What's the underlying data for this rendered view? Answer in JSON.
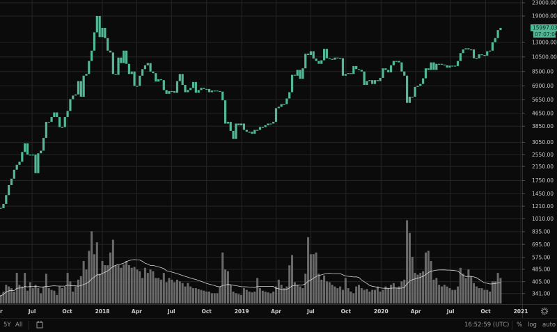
{
  "chart_data": {
    "type": "candlestick",
    "scale": "log",
    "grid": true,
    "price_axis_labels": [
      "23000.00",
      "19000.00",
      "13000.00",
      "10500.00",
      "8500.00",
      "6900.00",
      "5650.00",
      "4650.00",
      "3850.00",
      "3050.00",
      "2550.00",
      "2150.00",
      "1750.00",
      "1450.00",
      "1210.00",
      "1010.00",
      "835.00",
      "695.00",
      "575.00",
      "485.00",
      "405.00",
      "341.00"
    ],
    "time_axis_labels": [
      [
        "2017-04-01",
        "Apr"
      ],
      [
        "2017-07-01",
        "Jul"
      ],
      [
        "2017-10-01",
        "Oct"
      ],
      [
        "2018-01-01",
        "2018"
      ],
      [
        "2018-04-01",
        "Apr"
      ],
      [
        "2018-07-01",
        "Jul"
      ],
      [
        "2018-10-01",
        "Oct"
      ],
      [
        "2019-01-01",
        "2019"
      ],
      [
        "2019-04-01",
        "Apr"
      ],
      [
        "2019-07-01",
        "Jul"
      ],
      [
        "2019-10-01",
        "Oct"
      ],
      [
        "2020-01-01",
        "2020"
      ],
      [
        "2020-04-01",
        "Apr"
      ],
      [
        "2020-07-01",
        "Jul"
      ],
      [
        "2020-10-01",
        "Oct"
      ],
      [
        "2021-01-01",
        "2021"
      ]
    ],
    "last_price": "15997.03",
    "countdown": "07:07:00",
    "colors": {
      "candle": "#52b896",
      "volume": "#6a6a6a",
      "volume_ma": "#d8d8d8",
      "grid": "#262626",
      "background": "#0b0b0b"
    },
    "columns": [
      "week",
      "close",
      "volume_relative"
    ],
    "weeks": [
      [
        "2017-04-03",
        1180,
        8
      ],
      [
        "2017-04-10",
        1175,
        10
      ],
      [
        "2017-04-17",
        1250,
        14
      ],
      [
        "2017-04-24",
        1420,
        22
      ],
      [
        "2017-05-01",
        1640,
        20
      ],
      [
        "2017-05-08",
        1800,
        18
      ],
      [
        "2017-05-15",
        2050,
        14
      ],
      [
        "2017-05-22",
        2200,
        36
      ],
      [
        "2017-05-29",
        2300,
        22
      ],
      [
        "2017-06-05",
        2650,
        20
      ],
      [
        "2017-06-12",
        3000,
        36
      ],
      [
        "2017-06-19",
        2550,
        15
      ],
      [
        "2017-06-26",
        2550,
        25
      ],
      [
        "2017-07-03",
        2550,
        18
      ],
      [
        "2017-07-10",
        1950,
        22
      ],
      [
        "2017-07-17",
        2600,
        18
      ],
      [
        "2017-07-24",
        2700,
        12
      ],
      [
        "2017-07-31",
        3250,
        20
      ],
      [
        "2017-08-07",
        4100,
        35
      ],
      [
        "2017-08-14",
        4100,
        18
      ],
      [
        "2017-08-21",
        4400,
        16
      ],
      [
        "2017-08-28",
        4700,
        15
      ],
      [
        "2017-09-04",
        4400,
        10
      ],
      [
        "2017-09-11",
        3800,
        20
      ],
      [
        "2017-09-18",
        3800,
        18
      ],
      [
        "2017-09-25",
        4400,
        20
      ],
      [
        "2017-10-02",
        4800,
        36
      ],
      [
        "2017-10-09",
        5700,
        26
      ],
      [
        "2017-10-16",
        6000,
        14
      ],
      [
        "2017-10-23",
        6100,
        20
      ],
      [
        "2017-10-30",
        7400,
        28
      ],
      [
        "2017-11-06",
        5900,
        32
      ],
      [
        "2017-11-13",
        8000,
        50
      ],
      [
        "2017-11-20",
        8200,
        40
      ],
      [
        "2017-11-27",
        9900,
        62
      ],
      [
        "2017-12-04",
        11500,
        85
      ],
      [
        "2017-12-11",
        15000,
        58
      ],
      [
        "2017-12-18",
        19000,
        72
      ],
      [
        "2017-12-25",
        14000,
        35
      ],
      [
        "2018-01-01",
        16000,
        50
      ],
      [
        "2018-01-08",
        13800,
        45
      ],
      [
        "2018-01-15",
        11500,
        45
      ],
      [
        "2018-01-22",
        11200,
        60
      ],
      [
        "2018-01-29",
        8200,
        75
      ],
      [
        "2018-02-05",
        8100,
        45
      ],
      [
        "2018-02-12",
        10400,
        45
      ],
      [
        "2018-02-19",
        9600,
        42
      ],
      [
        "2018-02-26",
        11500,
        46
      ],
      [
        "2018-03-05",
        9500,
        50
      ],
      [
        "2018-03-12",
        8200,
        45
      ],
      [
        "2018-03-19",
        8500,
        42
      ],
      [
        "2018-03-26",
        6900,
        43
      ],
      [
        "2018-04-02",
        6900,
        40
      ],
      [
        "2018-04-09",
        8000,
        38
      ],
      [
        "2018-04-16",
        8800,
        30
      ],
      [
        "2018-04-23",
        9300,
        42
      ],
      [
        "2018-04-30",
        9600,
        36
      ],
      [
        "2018-05-07",
        8500,
        40
      ],
      [
        "2018-05-14",
        8300,
        38
      ],
      [
        "2018-05-21",
        7350,
        30
      ],
      [
        "2018-05-28",
        7600,
        30
      ],
      [
        "2018-06-04",
        7500,
        28
      ],
      [
        "2018-06-11",
        6500,
        36
      ],
      [
        "2018-06-18",
        6150,
        25
      ],
      [
        "2018-06-25",
        6400,
        30
      ],
      [
        "2018-07-02",
        6400,
        28
      ],
      [
        "2018-07-09",
        6250,
        25
      ],
      [
        "2018-07-16",
        7400,
        28
      ],
      [
        "2018-07-23",
        8200,
        26
      ],
      [
        "2018-07-30",
        7000,
        24
      ],
      [
        "2018-08-06",
        6300,
        20
      ],
      [
        "2018-08-13",
        6500,
        24
      ],
      [
        "2018-08-20",
        6700,
        20
      ],
      [
        "2018-08-27",
        7300,
        18
      ],
      [
        "2018-09-03",
        6250,
        18
      ],
      [
        "2018-09-10",
        6500,
        17
      ],
      [
        "2018-09-17",
        6700,
        16
      ],
      [
        "2018-09-24",
        6600,
        15
      ],
      [
        "2018-10-01",
        6600,
        14
      ],
      [
        "2018-10-08",
        6300,
        14
      ],
      [
        "2018-10-15",
        6450,
        12
      ],
      [
        "2018-10-22",
        6450,
        12
      ],
      [
        "2018-10-29",
        6400,
        12
      ],
      [
        "2018-11-05",
        6350,
        20
      ],
      [
        "2018-11-12",
        5600,
        60
      ],
      [
        "2018-11-19",
        4000,
        40
      ],
      [
        "2018-11-26",
        4100,
        38
      ],
      [
        "2018-12-03",
        3600,
        22
      ],
      [
        "2018-12-10",
        3200,
        14
      ],
      [
        "2018-12-17",
        4000,
        12
      ],
      [
        "2018-12-24",
        3900,
        11
      ],
      [
        "2018-12-31",
        4000,
        10
      ],
      [
        "2019-01-07",
        3650,
        18
      ],
      [
        "2019-01-14",
        3550,
        16
      ],
      [
        "2019-01-21",
        3550,
        14
      ],
      [
        "2019-01-28",
        3450,
        13
      ],
      [
        "2019-02-04",
        3650,
        14
      ],
      [
        "2019-02-11",
        3650,
        30
      ],
      [
        "2019-02-18",
        3800,
        18
      ],
      [
        "2019-02-25",
        3800,
        15
      ],
      [
        "2019-03-04",
        3900,
        14
      ],
      [
        "2019-03-11",
        4000,
        13
      ],
      [
        "2019-03-18",
        4000,
        12
      ],
      [
        "2019-03-25",
        4100,
        14
      ],
      [
        "2019-04-01",
        5000,
        20
      ],
      [
        "2019-04-08",
        5100,
        28
      ],
      [
        "2019-04-15",
        5300,
        22
      ],
      [
        "2019-04-22",
        5300,
        18
      ],
      [
        "2019-04-29",
        5750,
        20
      ],
      [
        "2019-05-06",
        6300,
        45
      ],
      [
        "2019-05-13",
        8100,
        57
      ],
      [
        "2019-05-20",
        8000,
        25
      ],
      [
        "2019-05-27",
        8700,
        22
      ],
      [
        "2019-06-03",
        7650,
        20
      ],
      [
        "2019-06-10",
        8900,
        18
      ],
      [
        "2019-06-17",
        11000,
        35
      ],
      [
        "2019-06-24",
        10800,
        78
      ],
      [
        "2019-07-01",
        11400,
        58
      ],
      [
        "2019-07-08",
        10250,
        58
      ],
      [
        "2019-07-15",
        9900,
        60
      ],
      [
        "2019-07-22",
        9500,
        35
      ],
      [
        "2019-07-29",
        10000,
        28
      ],
      [
        "2019-08-05",
        11800,
        33
      ],
      [
        "2019-08-12",
        10300,
        26
      ],
      [
        "2019-08-19",
        10200,
        25
      ],
      [
        "2019-08-26",
        10100,
        22
      ],
      [
        "2019-09-02",
        10400,
        20
      ],
      [
        "2019-09-09",
        10300,
        18
      ],
      [
        "2019-09-16",
        10300,
        20
      ],
      [
        "2019-09-23",
        8000,
        16
      ],
      [
        "2019-09-30",
        8200,
        30
      ],
      [
        "2019-10-07",
        8300,
        18
      ],
      [
        "2019-10-14",
        8200,
        14
      ],
      [
        "2019-10-21",
        9200,
        12
      ],
      [
        "2019-10-28",
        8800,
        20
      ],
      [
        "2019-11-04",
        8700,
        22
      ],
      [
        "2019-11-11",
        8500,
        18
      ],
      [
        "2019-11-18",
        7000,
        16
      ],
      [
        "2019-11-25",
        7400,
        17
      ],
      [
        "2019-12-02",
        7500,
        14
      ],
      [
        "2019-12-09",
        7100,
        16
      ],
      [
        "2019-12-16",
        7500,
        16
      ],
      [
        "2019-12-23",
        7400,
        20
      ],
      [
        "2019-12-30",
        7750,
        14
      ],
      [
        "2020-01-06",
        8900,
        16
      ],
      [
        "2020-01-13",
        8700,
        20
      ],
      [
        "2020-01-20",
        8400,
        18
      ],
      [
        "2020-01-27",
        9300,
        22
      ],
      [
        "2020-02-03",
        9900,
        24
      ],
      [
        "2020-02-10",
        9900,
        18
      ],
      [
        "2020-02-17",
        9700,
        20
      ],
      [
        "2020-02-24",
        8500,
        26
      ],
      [
        "2020-03-02",
        8000,
        28
      ],
      [
        "2020-03-09",
        5400,
        98
      ],
      [
        "2020-03-16",
        5900,
        83
      ],
      [
        "2020-03-23",
        5900,
        55
      ],
      [
        "2020-03-30",
        6800,
        36
      ],
      [
        "2020-04-06",
        6900,
        34
      ],
      [
        "2020-04-13",
        7100,
        36
      ],
      [
        "2020-04-20",
        7700,
        38
      ],
      [
        "2020-04-27",
        8900,
        60
      ],
      [
        "2020-05-04",
        8700,
        62
      ],
      [
        "2020-05-11",
        9700,
        50
      ],
      [
        "2020-05-18",
        8700,
        28
      ],
      [
        "2020-05-25",
        9500,
        30
      ],
      [
        "2020-06-01",
        9500,
        22
      ],
      [
        "2020-06-08",
        9400,
        20
      ],
      [
        "2020-06-15",
        9300,
        22
      ],
      [
        "2020-06-22",
        9000,
        20
      ],
      [
        "2020-06-29",
        9250,
        18
      ],
      [
        "2020-07-06",
        9250,
        16
      ],
      [
        "2020-07-13",
        9200,
        16
      ],
      [
        "2020-07-20",
        9900,
        20
      ],
      [
        "2020-07-27",
        11100,
        42
      ],
      [
        "2020-08-03",
        11700,
        35
      ],
      [
        "2020-08-10",
        11900,
        30
      ],
      [
        "2020-08-17",
        11700,
        40
      ],
      [
        "2020-08-24",
        11700,
        32
      ],
      [
        "2020-08-31",
        10300,
        24
      ],
      [
        "2020-09-07",
        10300,
        20
      ],
      [
        "2020-09-14",
        10900,
        18
      ],
      [
        "2020-09-21",
        10800,
        18
      ],
      [
        "2020-09-28",
        10700,
        16
      ],
      [
        "2020-10-05",
        11400,
        16
      ],
      [
        "2020-10-12",
        11500,
        14
      ],
      [
        "2020-10-19",
        13000,
        26
      ],
      [
        "2020-10-26",
        13800,
        26
      ],
      [
        "2020-11-02",
        15500,
        36
      ],
      [
        "2020-11-09",
        15997.03,
        30
      ]
    ]
  },
  "bottom_bar": {
    "range_5y": "5Y",
    "range_all": "All",
    "time_utc": "16:52:59 (UTC)",
    "percent": "%",
    "log": "log",
    "auto": "auto"
  }
}
